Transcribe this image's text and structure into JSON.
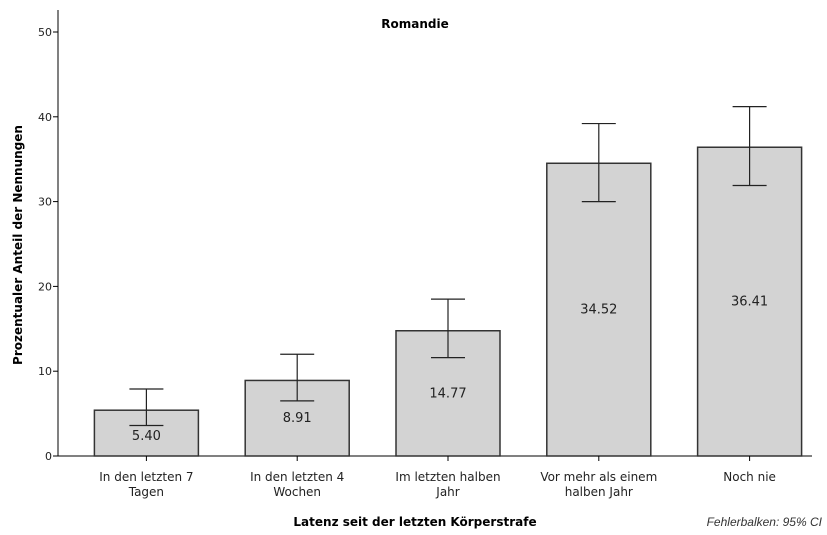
{
  "chart_data": {
    "type": "bar",
    "title": "Romandie",
    "xlabel": "Latenz seit der letzten Körperstrafe",
    "ylabel": "Prozentualer Anteil der Nennungen",
    "ylim": [
      0,
      50
    ],
    "yticks": [
      0,
      10,
      20,
      30,
      40,
      50
    ],
    "categories": [
      [
        "In den letzten 7",
        "Tagen"
      ],
      [
        "In den letzten 4",
        "Wochen"
      ],
      [
        "Im letzten halben",
        "Jahr"
      ],
      [
        "Vor mehr als einem",
        "halben Jahr"
      ],
      [
        "Noch nie"
      ]
    ],
    "values": [
      5.4,
      8.91,
      14.77,
      34.52,
      36.41
    ],
    "value_labels": [
      "5.40",
      "8.91",
      "14.77",
      "34.52",
      "36.41"
    ],
    "error_bars": [
      {
        "low": 3.6,
        "high": 7.9
      },
      {
        "low": 6.5,
        "high": 12.0
      },
      {
        "low": 11.6,
        "high": 18.5
      },
      {
        "low": 30.0,
        "high": 39.2
      },
      {
        "low": 31.9,
        "high": 41.2
      }
    ],
    "grid": false,
    "bar_color": "#d3d3d3",
    "footnote": "Fehlerbalken: 95% CI"
  }
}
